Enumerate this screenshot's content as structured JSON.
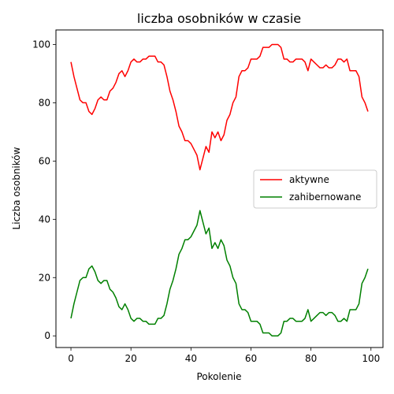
{
  "chart_data": {
    "type": "line",
    "title": "liczba osobników w czasie",
    "xlabel": "Pokolenie",
    "ylabel": "Liczba osobników",
    "xlim": [
      -5,
      104
    ],
    "ylim": [
      -4,
      105
    ],
    "xticks": [
      0,
      20,
      40,
      60,
      80,
      100
    ],
    "yticks": [
      0,
      20,
      40,
      60,
      80,
      100
    ],
    "grid": false,
    "legend_position": "center-right",
    "x_start": 0,
    "series": [
      {
        "name": "aktywne",
        "color": "#ff0000",
        "values": [
          94,
          89,
          85,
          81,
          80,
          80,
          77,
          76,
          78,
          81,
          82,
          81,
          81,
          84,
          85,
          87,
          90,
          91,
          89,
          91,
          94,
          95,
          94,
          94,
          95,
          95,
          96,
          96,
          96,
          94,
          94,
          93,
          89,
          84,
          81,
          77,
          72,
          70,
          67,
          67,
          66,
          64,
          62,
          57,
          61,
          65,
          63,
          70,
          68,
          70,
          67,
          69,
          74,
          76,
          80,
          82,
          89,
          91,
          91,
          92,
          95,
          95,
          95,
          96,
          99,
          99,
          99,
          100,
          100,
          100,
          99,
          95,
          95,
          94,
          94,
          95,
          95,
          95,
          94,
          91,
          95,
          94,
          93,
          92,
          92,
          93,
          92,
          92,
          93,
          95,
          95,
          94,
          95,
          91,
          91,
          91,
          89,
          82,
          80,
          77
        ]
      },
      {
        "name": "zahibernowane",
        "color": "#008000",
        "values": [
          6,
          11,
          15,
          19,
          20,
          20,
          23,
          24,
          22,
          19,
          18,
          19,
          19,
          16,
          15,
          13,
          10,
          9,
          11,
          9,
          6,
          5,
          6,
          6,
          5,
          5,
          4,
          4,
          4,
          6,
          6,
          7,
          11,
          16,
          19,
          23,
          28,
          30,
          33,
          33,
          34,
          36,
          38,
          43,
          39,
          35,
          37,
          30,
          32,
          30,
          33,
          31,
          26,
          24,
          20,
          18,
          11,
          9,
          9,
          8,
          5,
          5,
          5,
          4,
          1,
          1,
          1,
          0,
          0,
          0,
          1,
          5,
          5,
          6,
          6,
          5,
          5,
          5,
          6,
          9,
          5,
          6,
          7,
          8,
          8,
          7,
          8,
          8,
          7,
          5,
          5,
          6,
          5,
          9,
          9,
          9,
          11,
          18,
          20,
          23
        ]
      }
    ]
  }
}
